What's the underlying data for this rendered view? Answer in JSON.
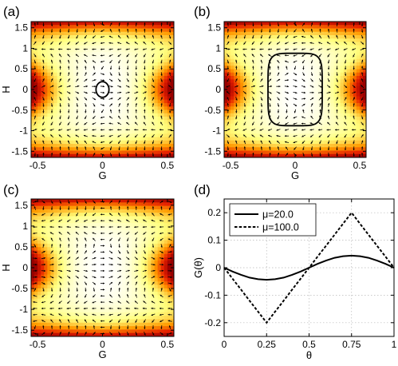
{
  "chart_data": [
    {
      "panel": "(a)",
      "type": "heatmap",
      "field": "vector-field",
      "xlabel": "G",
      "ylabel": "H",
      "xlim": [
        -0.55,
        0.55
      ],
      "ylim": [
        -1.65,
        1.65
      ],
      "xticks": [
        "-0.5",
        "0",
        "0.5"
      ],
      "yticks": [
        "1.5",
        "1",
        "0.5",
        "0",
        "-0.5",
        "-1",
        "-1.5"
      ],
      "xtick_values": [
        -0.5,
        0,
        0.5
      ],
      "ytick_values": [
        1.5,
        1,
        0.5,
        0,
        -0.5,
        -1,
        -1.5
      ],
      "colormap": [
        "#ffffff",
        "#ffff80",
        "#ff9a00",
        "#e62000",
        "#990000"
      ],
      "contour": {
        "center": [
          0,
          0
        ],
        "half_width": 0.05,
        "half_height": 0.19,
        "roundness": 2
      },
      "grid": false
    },
    {
      "panel": "(b)",
      "type": "heatmap",
      "field": "vector-field",
      "xlabel": "G",
      "ylabel": "",
      "xlim": [
        -0.55,
        0.55
      ],
      "ylim": [
        -1.65,
        1.65
      ],
      "xticks": [
        "-0.5",
        "0",
        "0.5"
      ],
      "yticks": [
        "1.5",
        "1",
        "0.5",
        "0",
        "-0.5",
        "-1",
        "-1.5"
      ],
      "xtick_values": [
        -0.5,
        0,
        0.5
      ],
      "ytick_values": [
        1.5,
        1,
        0.5,
        0,
        -0.5,
        -1,
        -1.5
      ],
      "colormap": [
        "#ffffff",
        "#ffff80",
        "#ff9a00",
        "#e62000",
        "#990000"
      ],
      "contour": {
        "center": [
          0,
          0
        ],
        "half_width": 0.21,
        "half_height": 0.88,
        "roundness": 5
      },
      "grid": false
    },
    {
      "panel": "(c)",
      "type": "heatmap",
      "field": "vector-field",
      "xlabel": "G",
      "ylabel": "H",
      "xlim": [
        -0.55,
        0.55
      ],
      "ylim": [
        -1.65,
        1.65
      ],
      "xticks": [
        "-0.5",
        "0",
        "0.5"
      ],
      "yticks": [
        "1.5",
        "1",
        "0.5",
        "0",
        "-0.5",
        "-1",
        "-1.5"
      ],
      "xtick_values": [
        -0.5,
        0,
        0.5
      ],
      "ytick_values": [
        1.5,
        1,
        0.5,
        0,
        -0.5,
        -1,
        -1.5
      ],
      "colormap": [
        "#ffffff",
        "#ffff80",
        "#ff9a00",
        "#e62000",
        "#990000"
      ],
      "contour": null,
      "grid": false
    },
    {
      "panel": "(d)",
      "type": "line",
      "xlabel": "θ",
      "ylabel": "G(θ)",
      "xlim": [
        0,
        1
      ],
      "ylim": [
        -0.25,
        0.25
      ],
      "xticks": [
        "0",
        "0.25",
        "0.5",
        "0.75",
        "1"
      ],
      "xtick_values": [
        0,
        0.25,
        0.5,
        0.75,
        1
      ],
      "yticks": [
        "0.2",
        "0.1",
        "0",
        "-0.1",
        "-0.2"
      ],
      "ytick_values": [
        0.2,
        0.1,
        0,
        -0.1,
        -0.2
      ],
      "grid": true,
      "legend_position": "top-left",
      "series": [
        {
          "name": "μ=20.0",
          "style": "solid",
          "x": [
            0,
            0.05,
            0.1,
            0.15,
            0.2,
            0.25,
            0.3,
            0.35,
            0.4,
            0.45,
            0.5,
            0.55,
            0.6,
            0.65,
            0.7,
            0.75,
            0.8,
            0.85,
            0.9,
            0.95,
            1
          ],
          "y": [
            0,
            -0.014,
            -0.026,
            -0.036,
            -0.042,
            -0.044,
            -0.042,
            -0.036,
            -0.026,
            -0.014,
            0,
            0.014,
            0.026,
            0.036,
            0.042,
            0.044,
            0.042,
            0.036,
            0.026,
            0.014,
            0
          ]
        },
        {
          "name": "μ=100.0",
          "style": "dashed",
          "x": [
            0,
            0.05,
            0.1,
            0.15,
            0.2,
            0.25,
            0.3,
            0.35,
            0.4,
            0.45,
            0.5,
            0.55,
            0.6,
            0.65,
            0.7,
            0.75,
            0.8,
            0.85,
            0.9,
            0.95,
            1
          ],
          "y": [
            0,
            -0.04,
            -0.08,
            -0.12,
            -0.16,
            -0.2,
            -0.16,
            -0.12,
            -0.08,
            -0.04,
            0,
            0.04,
            0.08,
            0.12,
            0.16,
            0.2,
            0.16,
            0.12,
            0.08,
            0.04,
            0
          ]
        }
      ]
    }
  ]
}
